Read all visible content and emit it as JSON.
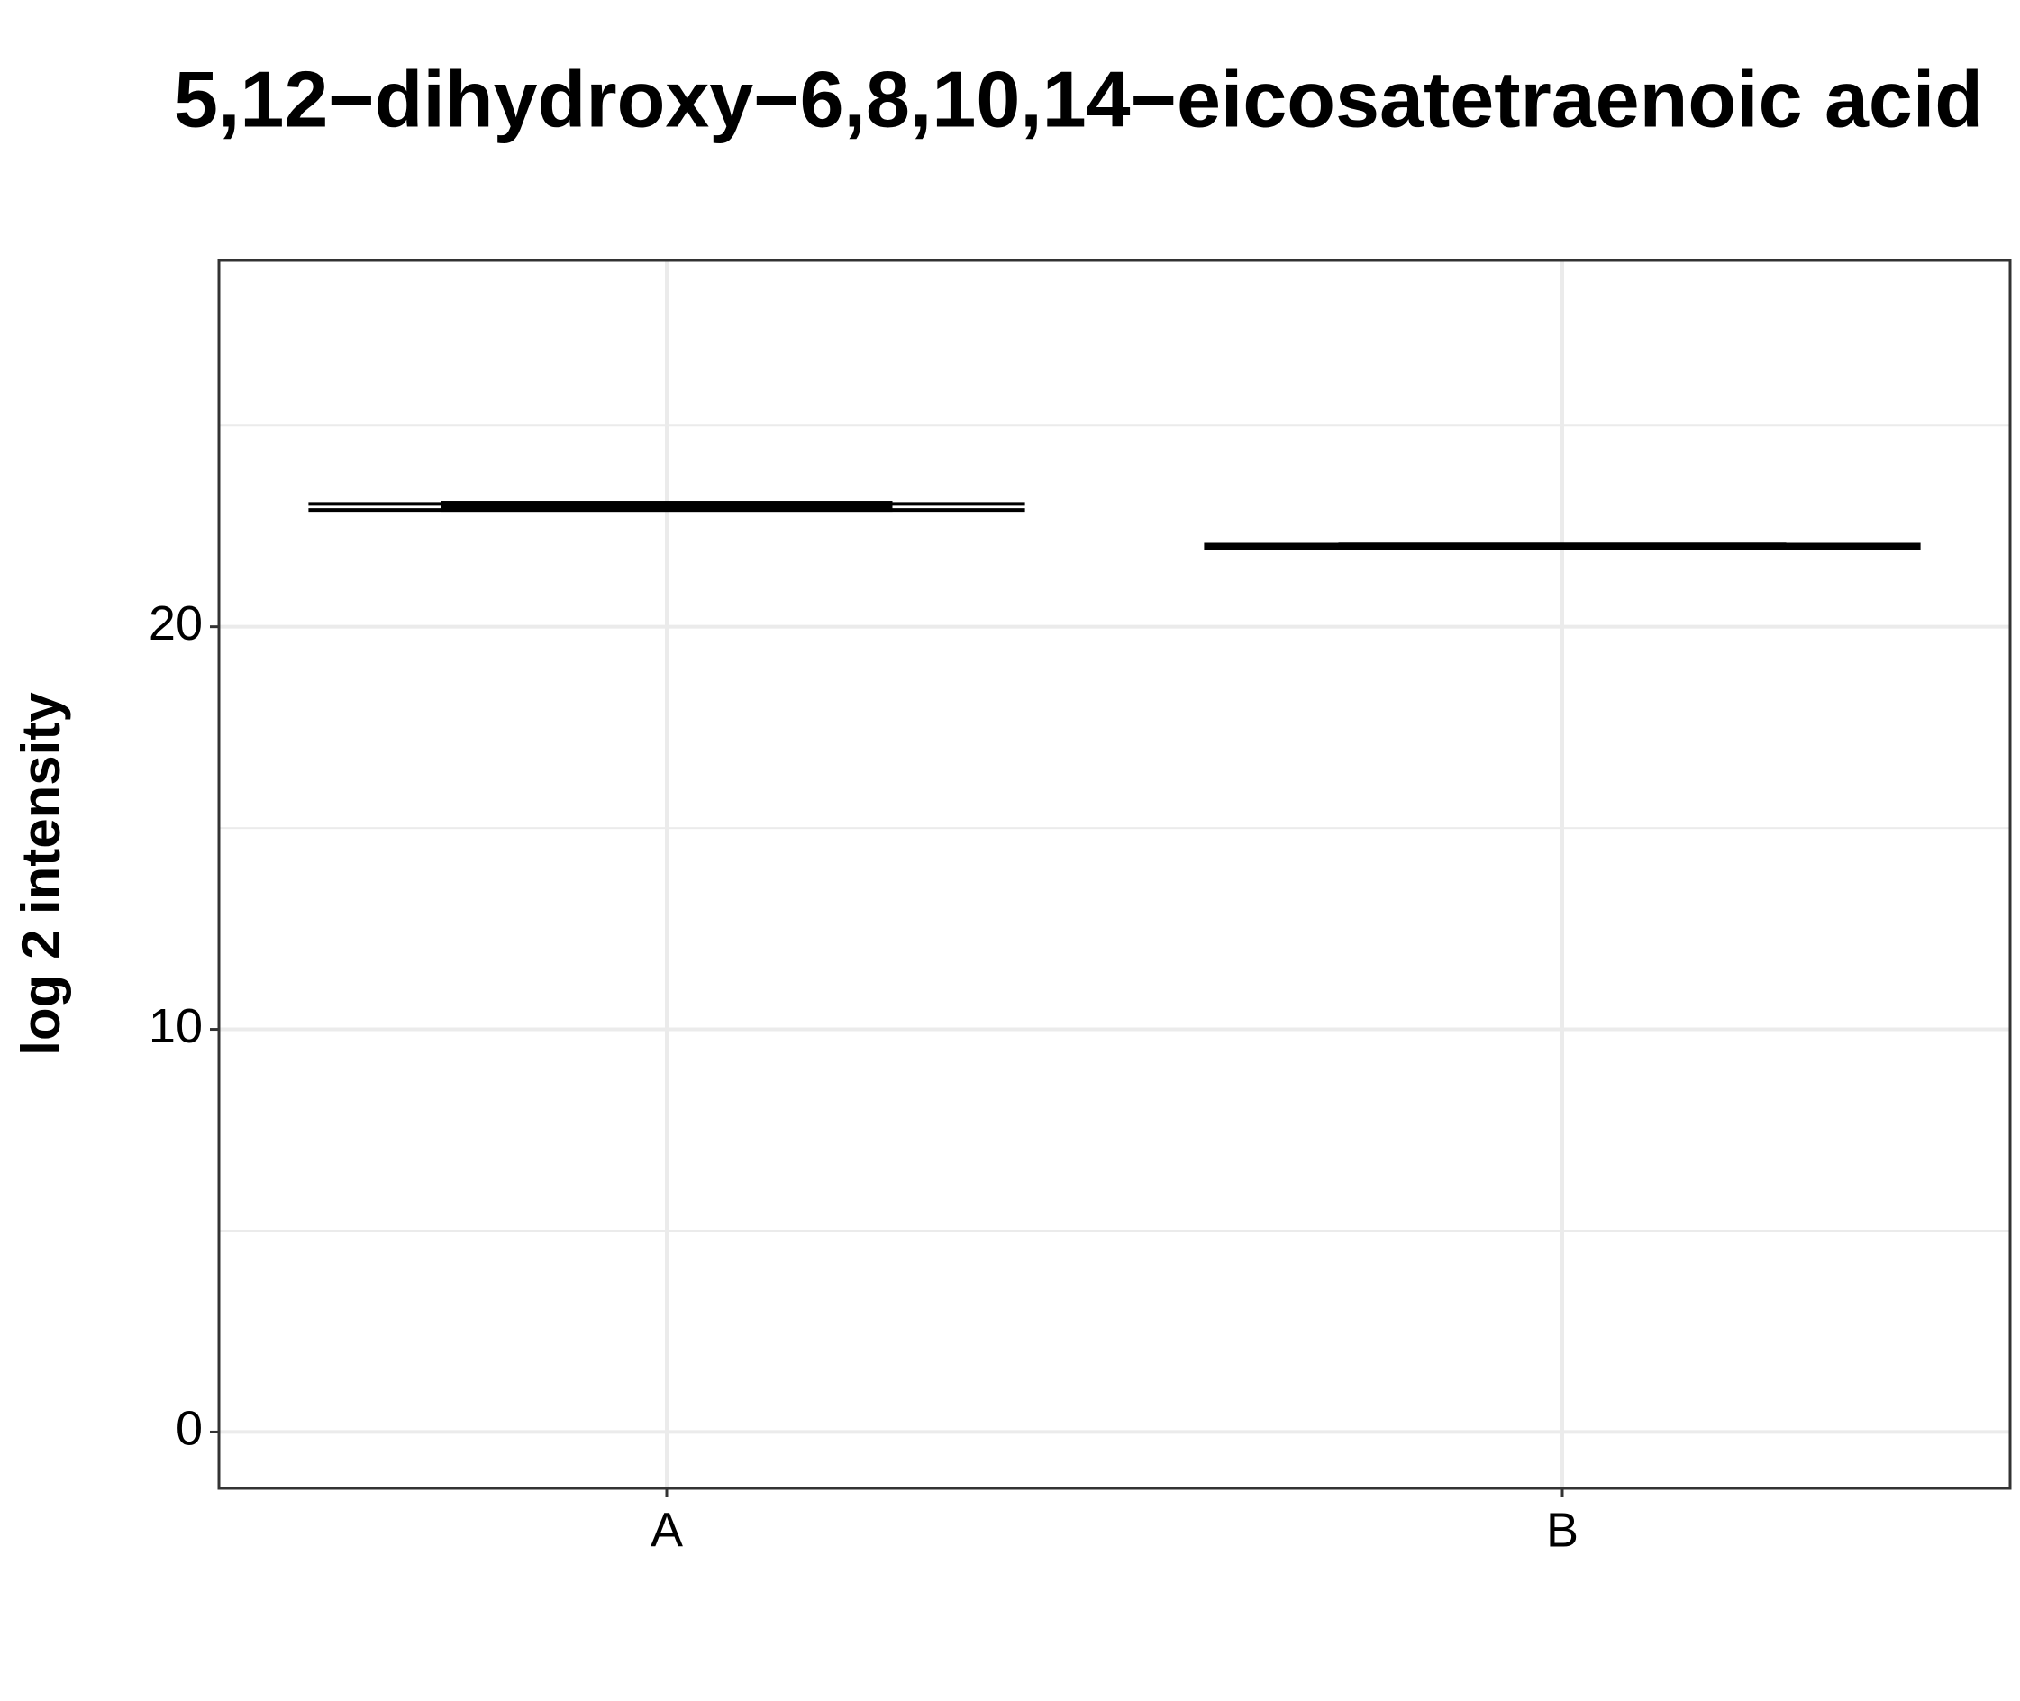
{
  "chart_data": {
    "type": "box",
    "title": "5,12−dihydroxy−6,8,10,14−eicosatetraenoic acid",
    "y_label": "log 2 intensity",
    "categories": [
      "A",
      "B"
    ],
    "low": [
      22.9,
      21.95
    ],
    "q1": [
      22.9,
      21.95
    ],
    "median": [
      23.0,
      22.0
    ],
    "q3": [
      23.08,
      22.04
    ],
    "high": [
      23.05,
      22.04
    ],
    "color": "#000000",
    "ylim": [
      -1.4,
      29.1
    ],
    "yticks": [
      0,
      10,
      20
    ],
    "yminorticks": [
      5,
      15,
      25
    ],
    "grid": true
  }
}
